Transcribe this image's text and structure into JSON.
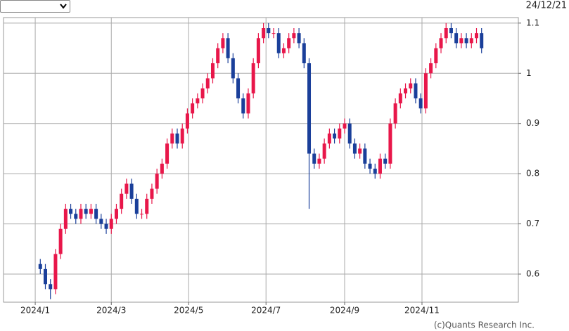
{
  "date": "24/12/21",
  "copyright": "(c)Quants Research Inc.",
  "chart_data": {
    "type": "candlestick",
    "x": [
      4,
      8,
      12,
      16,
      20,
      24,
      28,
      32,
      36,
      40,
      44,
      48,
      52,
      56,
      60,
      64,
      68,
      72,
      76,
      80,
      84,
      88,
      92,
      96,
      100,
      104,
      108,
      112,
      116,
      120,
      124,
      128,
      132,
      136,
      140,
      144,
      148,
      152,
      156,
      160,
      164,
      168,
      172,
      176,
      180,
      184,
      188,
      192,
      196,
      200,
      204,
      208,
      212,
      216,
      220,
      224,
      228,
      232,
      236,
      240,
      244,
      248,
      252,
      256,
      260,
      264,
      268,
      272,
      276,
      280,
      284,
      288,
      292,
      296,
      300,
      304,
      308,
      312,
      316,
      320,
      324,
      328,
      332,
      336,
      340,
      344,
      348,
      352
    ],
    "open": [
      0.62,
      0.61,
      0.58,
      0.57,
      0.64,
      0.69,
      0.73,
      0.72,
      0.71,
      0.73,
      0.72,
      0.73,
      0.71,
      0.7,
      0.69,
      0.71,
      0.73,
      0.76,
      0.78,
      0.75,
      0.72,
      0.72,
      0.75,
      0.77,
      0.8,
      0.82,
      0.86,
      0.88,
      0.86,
      0.89,
      0.92,
      0.94,
      0.95,
      0.97,
      0.99,
      1.02,
      1.05,
      1.07,
      1.03,
      0.99,
      0.95,
      0.92,
      0.96,
      1.02,
      1.07,
      1.09,
      1.08,
      1.08,
      1.04,
      1.05,
      1.07,
      1.08,
      1.06,
      1.02,
      0.84,
      0.82,
      0.83,
      0.86,
      0.88,
      0.87,
      0.89,
      0.9,
      0.86,
      0.84,
      0.85,
      0.82,
      0.81,
      0.8,
      0.83,
      0.82,
      0.9,
      0.94,
      0.96,
      0.97,
      0.98,
      0.95,
      0.93,
      1.0,
      1.02,
      1.05,
      1.07,
      1.09,
      1.08,
      1.06,
      1.07,
      1.06,
      1.07,
      1.08
    ],
    "high": [
      0.63,
      0.62,
      0.59,
      0.65,
      0.7,
      0.74,
      0.74,
      0.73,
      0.74,
      0.74,
      0.74,
      0.74,
      0.72,
      0.71,
      0.72,
      0.74,
      0.77,
      0.79,
      0.79,
      0.76,
      0.73,
      0.76,
      0.78,
      0.81,
      0.83,
      0.87,
      0.89,
      0.89,
      0.9,
      0.93,
      0.95,
      0.96,
      0.98,
      1.0,
      1.03,
      1.06,
      1.08,
      1.08,
      1.04,
      1.0,
      0.96,
      0.97,
      1.03,
      1.08,
      1.1,
      1.1,
      1.09,
      1.09,
      1.06,
      1.08,
      1.09,
      1.09,
      1.07,
      1.03,
      0.85,
      0.84,
      0.87,
      0.89,
      0.89,
      0.9,
      0.91,
      0.91,
      0.87,
      0.86,
      0.86,
      0.83,
      0.82,
      0.84,
      0.84,
      0.91,
      0.95,
      0.97,
      0.98,
      0.99,
      0.99,
      0.96,
      1.01,
      1.03,
      1.06,
      1.08,
      1.1,
      1.1,
      1.09,
      1.08,
      1.08,
      1.08,
      1.09,
      1.09
    ],
    "low": [
      0.6,
      0.57,
      0.55,
      0.56,
      0.63,
      0.68,
      0.71,
      0.7,
      0.7,
      0.71,
      0.71,
      0.7,
      0.69,
      0.68,
      0.68,
      0.7,
      0.72,
      0.75,
      0.74,
      0.71,
      0.71,
      0.71,
      0.74,
      0.76,
      0.79,
      0.81,
      0.85,
      0.85,
      0.85,
      0.88,
      0.91,
      0.93,
      0.94,
      0.96,
      0.98,
      1.01,
      1.04,
      1.02,
      0.98,
      0.94,
      0.91,
      0.91,
      0.95,
      1.01,
      1.06,
      1.07,
      1.07,
      1.03,
      1.03,
      1.04,
      1.06,
      1.05,
      1.01,
      0.73,
      0.81,
      0.81,
      0.82,
      0.85,
      0.86,
      0.86,
      0.88,
      0.85,
      0.83,
      0.83,
      0.81,
      0.8,
      0.79,
      0.79,
      0.81,
      0.81,
      0.89,
      0.93,
      0.95,
      0.96,
      0.94,
      0.92,
      0.92,
      0.99,
      1.01,
      1.04,
      1.06,
      1.07,
      1.05,
      1.05,
      1.05,
      1.05,
      1.06,
      1.04
    ],
    "close": [
      0.61,
      0.58,
      0.57,
      0.64,
      0.69,
      0.73,
      0.72,
      0.71,
      0.73,
      0.72,
      0.73,
      0.71,
      0.7,
      0.69,
      0.71,
      0.73,
      0.76,
      0.78,
      0.75,
      0.72,
      0.72,
      0.75,
      0.77,
      0.8,
      0.82,
      0.86,
      0.88,
      0.86,
      0.89,
      0.92,
      0.94,
      0.95,
      0.97,
      0.99,
      1.02,
      1.05,
      1.07,
      1.03,
      0.99,
      0.95,
      0.92,
      0.96,
      1.02,
      1.07,
      1.09,
      1.08,
      1.08,
      1.04,
      1.05,
      1.07,
      1.08,
      1.06,
      1.02,
      0.84,
      0.82,
      0.83,
      0.86,
      0.88,
      0.87,
      0.89,
      0.9,
      0.86,
      0.84,
      0.85,
      0.82,
      0.81,
      0.8,
      0.83,
      0.82,
      0.9,
      0.94,
      0.96,
      0.97,
      0.98,
      0.95,
      0.93,
      1.0,
      1.02,
      1.05,
      1.07,
      1.09,
      1.08,
      1.06,
      1.07,
      1.06,
      1.07,
      1.08,
      1.05
    ],
    "up_color": "#e8174a",
    "down_color": "#1a3f9a",
    "xlim": [
      -25,
      381
    ],
    "xticks": [
      {
        "value": 0,
        "label": "2024/1"
      },
      {
        "value": 60,
        "label": "2024/3"
      },
      {
        "value": 121,
        "label": "2024/5"
      },
      {
        "value": 182,
        "label": "2024/7"
      },
      {
        "value": 244,
        "label": "2024/9"
      },
      {
        "value": 305,
        "label": "2024/11"
      }
    ],
    "ylim": [
      0.544,
      1.111
    ],
    "yticks": [
      0.6,
      0.7,
      0.8,
      0.9,
      1.0,
      1.1
    ],
    "grid": true
  }
}
